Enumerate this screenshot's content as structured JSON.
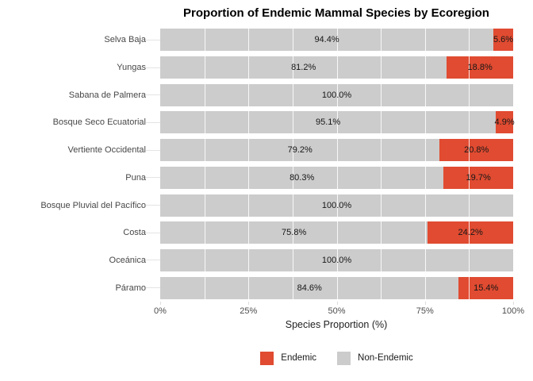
{
  "title": "Proportion of Endemic Mammal Species by Ecoregion",
  "colors": {
    "endemic": "#e04b31",
    "non_endemic": "#cccccc",
    "axis_text": "#4d4d4d",
    "grid_overlay": "rgba(255,255,255,0.85)"
  },
  "chart_data": {
    "type": "bar",
    "orientation": "horizontal",
    "stacked": true,
    "title": "Proportion of Endemic Mammal Species by Ecoregion",
    "xlabel": "Species Proportion (%)",
    "ylabel": "",
    "xlim": [
      0,
      100
    ],
    "x_ticks": [
      {
        "value": 0,
        "label": "0%"
      },
      {
        "value": 25,
        "label": "25%"
      },
      {
        "value": 50,
        "label": "50%"
      },
      {
        "value": 75,
        "label": "75%"
      },
      {
        "value": 100,
        "label": "100%"
      }
    ],
    "minor_grid_step_pct": 12.5,
    "categories": [
      "Selva Baja",
      "Yungas",
      "Sabana de Palmera",
      "Bosque Seco Ecuatorial",
      "Vertiente Occidental",
      "Puna",
      "Bosque Pluvial del Pacífico",
      "Costa",
      "Oceánica",
      "Páramo"
    ],
    "series": [
      {
        "name": "Non-Endemic",
        "color": "#cccccc",
        "values": [
          94.4,
          81.2,
          100.0,
          95.1,
          79.2,
          80.3,
          100.0,
          75.8,
          100.0,
          84.6
        ]
      },
      {
        "name": "Endemic",
        "color": "#e04b31",
        "values": [
          5.6,
          18.8,
          0.0,
          4.9,
          20.8,
          19.7,
          0.0,
          24.2,
          0.0,
          15.4
        ]
      }
    ],
    "bar_labels": {
      "Selva Baja": [
        "94.4%",
        "5.6%"
      ],
      "Yungas": [
        "81.2%",
        "18.8%"
      ],
      "Sabana de Palmera": [
        "100.0%"
      ],
      "Bosque Seco Ecuatorial": [
        "95.1%",
        "4.9%"
      ],
      "Vertiente Occidental": [
        "79.2%",
        "20.8%"
      ],
      "Puna": [
        "80.3%",
        "19.7%"
      ],
      "Bosque Pluvial del Pacífico": [
        "100.0%"
      ],
      "Costa": [
        "75.8%",
        "24.2%"
      ],
      "Oceánica": [
        "100.0%"
      ],
      "Páramo": [
        "84.6%",
        "15.4%"
      ]
    },
    "legend_position": "bottom",
    "legend": [
      {
        "label": "Endemic",
        "color": "#e04b31"
      },
      {
        "label": "Non-Endemic",
        "color": "#cccccc"
      }
    ],
    "grid": true
  }
}
